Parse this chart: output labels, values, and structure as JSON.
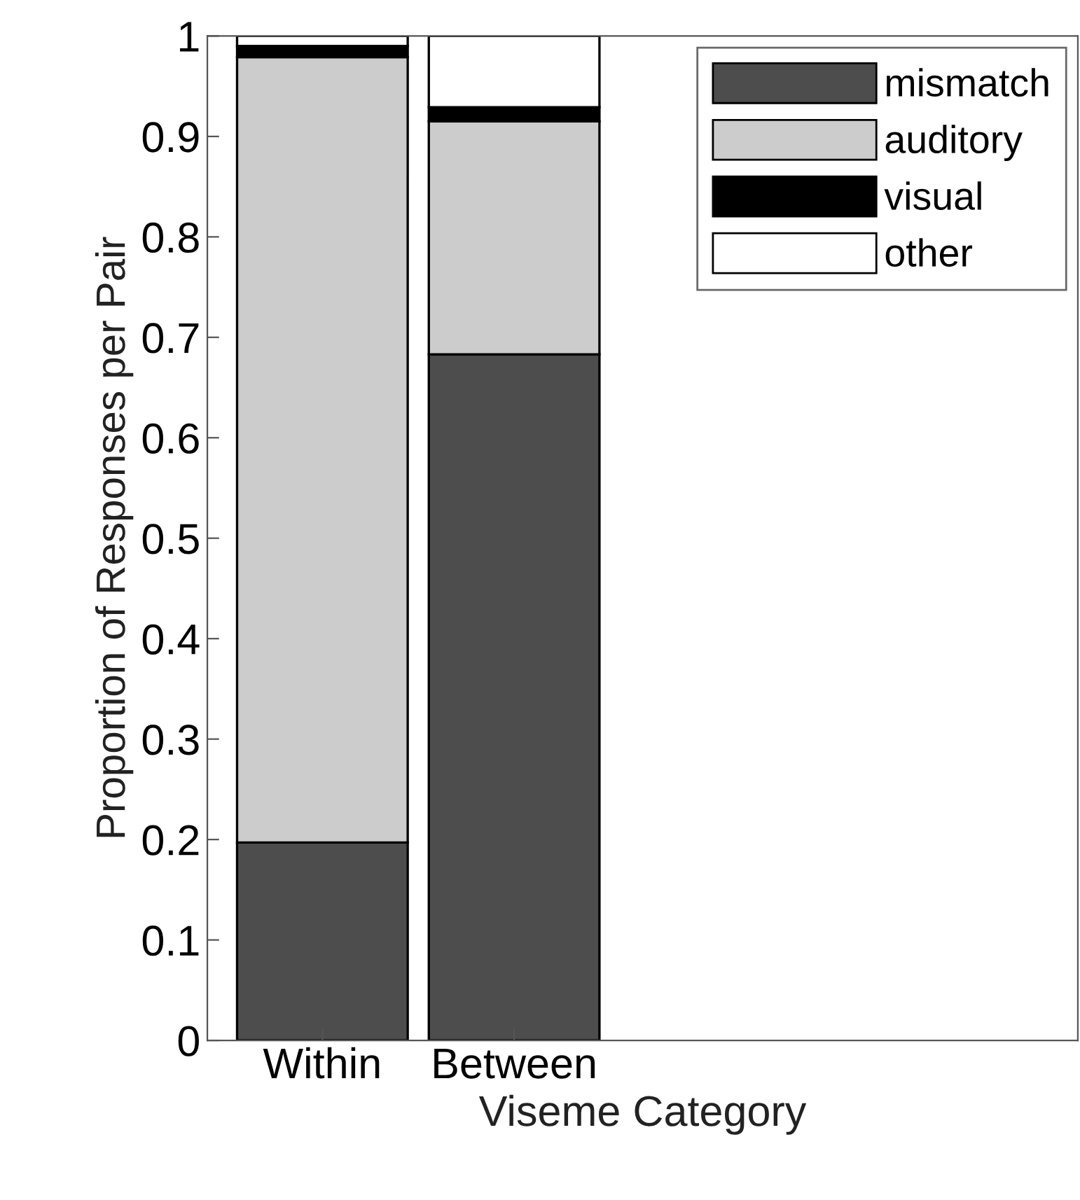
{
  "chart_data": {
    "type": "bar",
    "stacked": true,
    "categories": [
      "Within",
      "Between"
    ],
    "xlabel": "Viseme Category",
    "ylabel": "Proportion of Responses per Pair",
    "series": [
      {
        "name": "mismatch",
        "color": "#4d4d4d",
        "values": [
          0.197,
          0.683
        ]
      },
      {
        "name": "auditory",
        "color": "#cccccc",
        "values": [
          0.782,
          0.232
        ]
      },
      {
        "name": "visual",
        "color": "#000000",
        "values": [
          0.011,
          0.014
        ]
      },
      {
        "name": "other",
        "color": "#ffffff",
        "values": [
          0.01,
          0.071
        ]
      }
    ],
    "ylim": [
      0,
      1
    ],
    "yticks": [
      0,
      0.1,
      0.2,
      0.3,
      0.4,
      0.5,
      0.6,
      0.7,
      0.8,
      0.9,
      1
    ],
    "legend": "top right",
    "grid": false
  }
}
